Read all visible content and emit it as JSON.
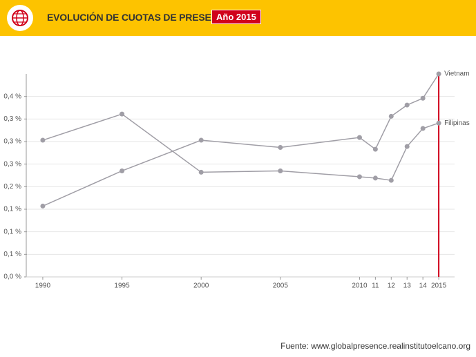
{
  "header": {
    "title": "EVOLUCIÓN DE CUOTAS DE PRESENCIA",
    "badge": "Año 2015"
  },
  "chart_data": {
    "type": "line",
    "x": [
      1990,
      1995,
      2000,
      2005,
      2010,
      2011,
      2012,
      2013,
      2014,
      2015
    ],
    "series": [
      {
        "name": "Vietnam",
        "color": "#a09ea6",
        "values": [
          0.157,
          0.235,
          0.303,
          0.287,
          0.309,
          0.283,
          0.356,
          0.381,
          0.396,
          0.45
        ]
      },
      {
        "name": "Filipinas",
        "color": "#a09ea6",
        "values": [
          0.303,
          0.361,
          0.232,
          0.235,
          0.222,
          0.219,
          0.214,
          0.289,
          0.329,
          0.341
        ]
      }
    ],
    "xlim": [
      1989,
      2016
    ],
    "xticks": [
      1990,
      1995,
      2000,
      2005,
      2010,
      {
        "value": 2011,
        "label": "11"
      },
      {
        "value": 2012,
        "label": "12"
      },
      {
        "value": 2013,
        "label": "13"
      },
      {
        "value": 2014,
        "label": "14"
      },
      2015
    ],
    "ylim": [
      0,
      0.45
    ],
    "yticks": [
      {
        "value": 0,
        "label": "0,0 %"
      },
      {
        "value": 0.05,
        "label": "0,1 %"
      },
      {
        "value": 0.1,
        "label": "0,1 %"
      },
      {
        "value": 0.15,
        "label": "0,1 %"
      },
      {
        "value": 0.2,
        "label": "0,2 %"
      },
      {
        "value": 0.25,
        "label": "0,3 %"
      },
      {
        "value": 0.3,
        "label": "0,3 %"
      },
      {
        "value": 0.35,
        "label": "0,3 %"
      },
      {
        "value": 0.4,
        "label": "0,4 %"
      }
    ],
    "grid": true,
    "highlight_x": 2015,
    "highlight_color": "#d0021b"
  },
  "source": "Fuente: www.globalpresence.realinstitutoelcano.org"
}
